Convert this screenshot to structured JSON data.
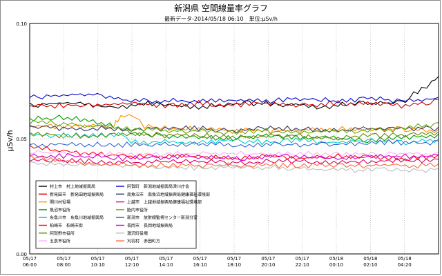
{
  "chart_data": {
    "type": "line",
    "title": "新潟県 空間線量率グラフ",
    "subtitle": "最新データ-2014/05/18 06:10　単位:μSv/h",
    "ylabel": "μSv/h",
    "xlabel": "",
    "ylim": [
      0,
      0.1
    ],
    "yticks": [
      "0.00",
      "0.05",
      "0.10"
    ],
    "xticks": [
      {
        "date": "05/17",
        "time": "06:00"
      },
      {
        "date": "05/17",
        "time": "08:00"
      },
      {
        "date": "05/17",
        "time": "10:10"
      },
      {
        "date": "05/17",
        "time": "12:10"
      },
      {
        "date": "05/17",
        "time": "14:10"
      },
      {
        "date": "05/17",
        "time": "16:10"
      },
      {
        "date": "05/17",
        "time": "18:10"
      },
      {
        "date": "05/17",
        "time": "20:10"
      },
      {
        "date": "05/17",
        "time": "22:10"
      },
      {
        "date": "05/18",
        "time": "00:10"
      },
      {
        "date": "05/18",
        "time": "02:10"
      },
      {
        "date": "05/18",
        "time": "04:20"
      }
    ],
    "x_range_hours": [
      0,
      24.2
    ],
    "grid": true,
    "legend": "bottom-left",
    "series": [
      {
        "name": "村上市　村上地域振興局",
        "color": "#000000",
        "points": [
          [
            0,
            0.065
          ],
          [
            1.5,
            0.066
          ],
          [
            3,
            0.066
          ],
          [
            5,
            0.064
          ],
          [
            6,
            0.065
          ],
          [
            7,
            0.066
          ],
          [
            9,
            0.065
          ],
          [
            10,
            0.064
          ],
          [
            11,
            0.065
          ],
          [
            13,
            0.066
          ],
          [
            14,
            0.066
          ],
          [
            15,
            0.065
          ],
          [
            16,
            0.066
          ],
          [
            17,
            0.064
          ],
          [
            18,
            0.065
          ],
          [
            19,
            0.066
          ],
          [
            20,
            0.066
          ],
          [
            21,
            0.066
          ],
          [
            22,
            0.066
          ],
          [
            22.5,
            0.069
          ],
          [
            23.2,
            0.072
          ],
          [
            23.8,
            0.075
          ],
          [
            24.2,
            0.077
          ]
        ]
      },
      {
        "name": "新発田市　新発田地域振興局",
        "color": "#cc0000",
        "points": [
          [
            0,
            0.065
          ],
          [
            2,
            0.065
          ],
          [
            4,
            0.065
          ],
          [
            6,
            0.066
          ],
          [
            8,
            0.065
          ],
          [
            10,
            0.066
          ],
          [
            12,
            0.065
          ],
          [
            14,
            0.066
          ],
          [
            16,
            0.065
          ],
          [
            18,
            0.066
          ],
          [
            20,
            0.066
          ],
          [
            22,
            0.065
          ],
          [
            24.2,
            0.067
          ]
        ]
      },
      {
        "name": "関川村役場",
        "color": "#ff8c00",
        "points": [
          [
            0,
            0.056
          ],
          [
            3,
            0.056
          ],
          [
            5,
            0.056
          ],
          [
            5.2,
            0.059
          ],
          [
            5.6,
            0.061
          ],
          [
            6.2,
            0.06
          ],
          [
            6.8,
            0.056
          ],
          [
            8,
            0.055
          ],
          [
            10,
            0.055
          ],
          [
            12,
            0.054
          ],
          [
            14,
            0.054
          ],
          [
            16,
            0.054
          ],
          [
            18,
            0.055
          ],
          [
            20,
            0.054
          ],
          [
            22,
            0.055
          ],
          [
            24.2,
            0.054
          ]
        ]
      },
      {
        "name": "魚沼市役所",
        "color": "#009900",
        "points": [
          [
            0,
            0.059
          ],
          [
            2,
            0.06
          ],
          [
            4,
            0.058
          ],
          [
            5,
            0.056
          ],
          [
            6,
            0.053
          ],
          [
            8,
            0.052
          ],
          [
            10,
            0.051
          ],
          [
            12,
            0.051
          ],
          [
            14,
            0.052
          ],
          [
            16,
            0.051
          ],
          [
            18,
            0.051
          ],
          [
            20,
            0.05
          ],
          [
            22,
            0.051
          ],
          [
            24.2,
            0.052
          ]
        ]
      },
      {
        "name": "糸魚川市　糸魚川地域振興局",
        "color": "#00cccc",
        "points": [
          [
            0,
            0.052
          ],
          [
            2,
            0.052
          ],
          [
            4,
            0.052
          ],
          [
            5.5,
            0.052
          ],
          [
            6,
            0.049
          ],
          [
            8,
            0.049
          ],
          [
            10,
            0.049
          ],
          [
            12,
            0.05
          ],
          [
            14,
            0.049
          ],
          [
            16,
            0.05
          ],
          [
            18,
            0.049
          ],
          [
            20,
            0.05
          ],
          [
            22,
            0.049
          ],
          [
            24.2,
            0.05
          ]
        ]
      },
      {
        "name": "柏崎市　柏崎市街",
        "color": "#ff0000",
        "points": [
          [
            0,
            0.047
          ],
          [
            2,
            0.045
          ],
          [
            4,
            0.044
          ],
          [
            6,
            0.043
          ],
          [
            8,
            0.043
          ],
          [
            10,
            0.043
          ],
          [
            12,
            0.042
          ],
          [
            14,
            0.043
          ],
          [
            16,
            0.042
          ],
          [
            18,
            0.043
          ],
          [
            20,
            0.043
          ],
          [
            22,
            0.042
          ],
          [
            24.2,
            0.043
          ]
        ]
      },
      {
        "name": "阿賀野市役所",
        "color": "#668800",
        "points": [
          [
            0,
            0.053
          ],
          [
            2,
            0.052
          ],
          [
            4,
            0.052
          ],
          [
            6,
            0.053
          ],
          [
            8,
            0.052
          ],
          [
            10,
            0.052
          ],
          [
            12,
            0.051
          ],
          [
            14,
            0.052
          ],
          [
            16,
            0.052
          ],
          [
            18,
            0.051
          ],
          [
            20,
            0.052
          ],
          [
            22,
            0.052
          ],
          [
            24.2,
            0.053
          ]
        ]
      },
      {
        "name": "五泉市役所",
        "color": "#ffaaff",
        "points": [
          [
            0,
            0.045
          ],
          [
            3,
            0.044
          ],
          [
            6,
            0.044
          ],
          [
            9,
            0.044
          ],
          [
            12,
            0.044
          ],
          [
            15,
            0.044
          ],
          [
            18,
            0.044
          ],
          [
            21,
            0.044
          ],
          [
            24.2,
            0.044
          ]
        ]
      },
      {
        "name": "阿賀町　新潟地域振興局津川庁舎",
        "color": "#0000cc",
        "points": [
          [
            0,
            0.069
          ],
          [
            2,
            0.069
          ],
          [
            3,
            0.07
          ],
          [
            4,
            0.07
          ],
          [
            5,
            0.068
          ],
          [
            6,
            0.067
          ],
          [
            8,
            0.067
          ],
          [
            10,
            0.067
          ],
          [
            12,
            0.067
          ],
          [
            14,
            0.067
          ],
          [
            16,
            0.068
          ],
          [
            18,
            0.067
          ],
          [
            20,
            0.068
          ],
          [
            22,
            0.067
          ],
          [
            24.2,
            0.068
          ]
        ]
      },
      {
        "name": "南魚沼市　南魚沼地域振興局健康福祉環境部",
        "color": "#333366",
        "points": [
          [
            0,
            0.056
          ],
          [
            2,
            0.055
          ],
          [
            4,
            0.055
          ],
          [
            6,
            0.055
          ],
          [
            8,
            0.055
          ],
          [
            10,
            0.055
          ],
          [
            12,
            0.054
          ],
          [
            14,
            0.055
          ],
          [
            16,
            0.055
          ],
          [
            18,
            0.054
          ],
          [
            20,
            0.055
          ],
          [
            22,
            0.055
          ],
          [
            24.2,
            0.055
          ]
        ]
      },
      {
        "name": "上越市　上越地域振興局健康福祉環境部",
        "color": "#dd0066",
        "points": [
          [
            0,
            0.041
          ],
          [
            3,
            0.041
          ],
          [
            6,
            0.04
          ],
          [
            9,
            0.041
          ],
          [
            12,
            0.04
          ],
          [
            15,
            0.041
          ],
          [
            18,
            0.04
          ],
          [
            21,
            0.041
          ],
          [
            24.2,
            0.041
          ]
        ]
      },
      {
        "name": "胎内市役所",
        "color": "#66aa00",
        "points": [
          [
            0,
            0.058
          ],
          [
            2,
            0.057
          ],
          [
            4,
            0.056
          ],
          [
            6,
            0.055
          ],
          [
            8,
            0.054
          ],
          [
            10,
            0.054
          ],
          [
            12,
            0.053
          ],
          [
            14,
            0.054
          ],
          [
            16,
            0.053
          ],
          [
            18,
            0.054
          ],
          [
            20,
            0.054
          ],
          [
            22,
            0.055
          ],
          [
            24.2,
            0.057
          ]
        ]
      },
      {
        "name": "新潟市　放射線監視センター新潟分室",
        "color": "#3366cc",
        "points": [
          [
            0,
            0.048
          ],
          [
            3,
            0.048
          ],
          [
            6,
            0.048
          ],
          [
            9,
            0.048
          ],
          [
            12,
            0.048
          ],
          [
            15,
            0.048
          ],
          [
            18,
            0.048
          ],
          [
            21,
            0.049
          ],
          [
            24.2,
            0.049
          ]
        ]
      },
      {
        "name": "長岡市　長岡地域振興局",
        "color": "#cc00cc",
        "points": [
          [
            0,
            0.043
          ],
          [
            3,
            0.043
          ],
          [
            6,
            0.042
          ],
          [
            9,
            0.043
          ],
          [
            12,
            0.042
          ],
          [
            15,
            0.043
          ],
          [
            18,
            0.042
          ],
          [
            21,
            0.043
          ],
          [
            24.2,
            0.043
          ]
        ]
      },
      {
        "name": "湯沢町役場",
        "color": "#bbbbbb",
        "points": [
          [
            0,
            0.04
          ],
          [
            3,
            0.039
          ],
          [
            6,
            0.039
          ],
          [
            9,
            0.038
          ],
          [
            12,
            0.038
          ],
          [
            15,
            0.038
          ],
          [
            18,
            0.037
          ],
          [
            21,
            0.037
          ],
          [
            24.2,
            0.037
          ]
        ]
      },
      {
        "name": "刈羽村　赤田町方",
        "color": "#ff6633",
        "points": [
          [
            0,
            0.043
          ],
          [
            3,
            0.04
          ],
          [
            6,
            0.039
          ],
          [
            9,
            0.039
          ],
          [
            12,
            0.039
          ],
          [
            15,
            0.039
          ],
          [
            18,
            0.039
          ],
          [
            21,
            0.039
          ],
          [
            24.2,
            0.039
          ]
        ]
      }
    ]
  }
}
